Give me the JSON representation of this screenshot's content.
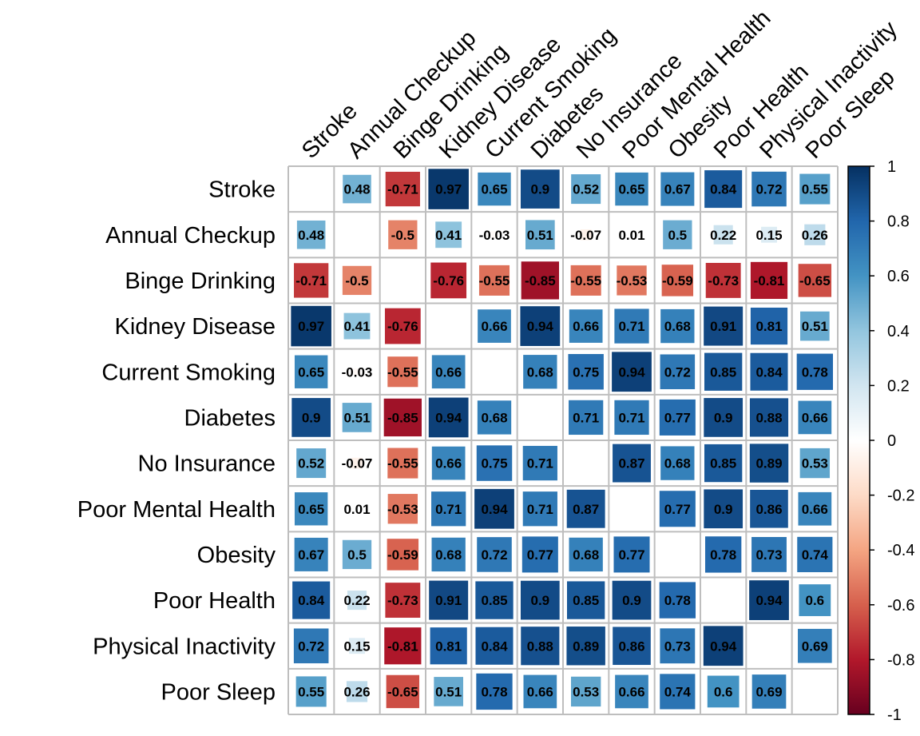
{
  "chart_data": {
    "type": "heatmap",
    "title": "",
    "variables": [
      "Stroke",
      "Annual Checkup",
      "Binge Drinking",
      "Kidney Disease",
      "Current Smoking",
      "Diabetes",
      "No Insurance",
      "Poor Mental Health",
      "Obesity",
      "Poor Health",
      "Physical Inactivity",
      "Poor Sleep"
    ],
    "matrix": [
      [
        null,
        0.48,
        -0.71,
        0.97,
        0.65,
        0.9,
        0.52,
        0.65,
        0.67,
        0.84,
        0.72,
        0.55
      ],
      [
        0.48,
        null,
        -0.5,
        0.41,
        -0.03,
        0.51,
        -0.07,
        0.01,
        0.5,
        0.22,
        0.15,
        0.26
      ],
      [
        -0.71,
        -0.5,
        null,
        -0.76,
        -0.55,
        -0.85,
        -0.55,
        -0.53,
        -0.59,
        -0.73,
        -0.81,
        -0.65
      ],
      [
        0.97,
        0.41,
        -0.76,
        null,
        0.66,
        0.94,
        0.66,
        0.71,
        0.68,
        0.91,
        0.81,
        0.51
      ],
      [
        0.65,
        -0.03,
        -0.55,
        0.66,
        null,
        0.68,
        0.75,
        0.94,
        0.72,
        0.85,
        0.84,
        0.78
      ],
      [
        0.9,
        0.51,
        -0.85,
        0.94,
        0.68,
        null,
        0.71,
        0.71,
        0.77,
        0.9,
        0.88,
        0.66
      ],
      [
        0.52,
        -0.07,
        -0.55,
        0.66,
        0.75,
        0.71,
        null,
        0.87,
        0.68,
        0.85,
        0.89,
        0.53
      ],
      [
        0.65,
        0.01,
        -0.53,
        0.71,
        0.94,
        0.71,
        0.87,
        null,
        0.77,
        0.9,
        0.86,
        0.66
      ],
      [
        0.67,
        0.5,
        -0.59,
        0.68,
        0.72,
        0.77,
        0.68,
        0.77,
        null,
        0.78,
        0.73,
        0.74
      ],
      [
        0.84,
        0.22,
        -0.73,
        0.91,
        0.85,
        0.9,
        0.85,
        0.9,
        0.78,
        null,
        0.94,
        0.6
      ],
      [
        0.72,
        0.15,
        -0.81,
        0.81,
        0.84,
        0.88,
        0.89,
        0.86,
        0.73,
        0.94,
        null,
        0.69
      ],
      [
        0.55,
        0.26,
        -0.65,
        0.51,
        0.78,
        0.66,
        0.53,
        0.66,
        0.74,
        0.6,
        0.69,
        null
      ]
    ],
    "colorbar": {
      "range": [
        -1,
        1
      ],
      "ticks": [
        1,
        0.8,
        0.6,
        0.4,
        0.2,
        0,
        -0.2,
        -0.4,
        -0.6,
        -0.8,
        -1
      ],
      "tick_labels": [
        "1",
        "0.8",
        "0.6",
        "0.4",
        "0.2",
        "0",
        "-0.2",
        "-0.4",
        "-0.6",
        "-0.8",
        "-1"
      ],
      "palette": [
        "#67001F",
        "#B2182B",
        "#D6604D",
        "#F4A582",
        "#FDDBC7",
        "#FFFFFF",
        "#D1E5F0",
        "#92C5DE",
        "#4393C3",
        "#2166AC",
        "#053061"
      ]
    },
    "grid": true,
    "grid_color": "#BEBEBE",
    "legend_position": "right"
  }
}
